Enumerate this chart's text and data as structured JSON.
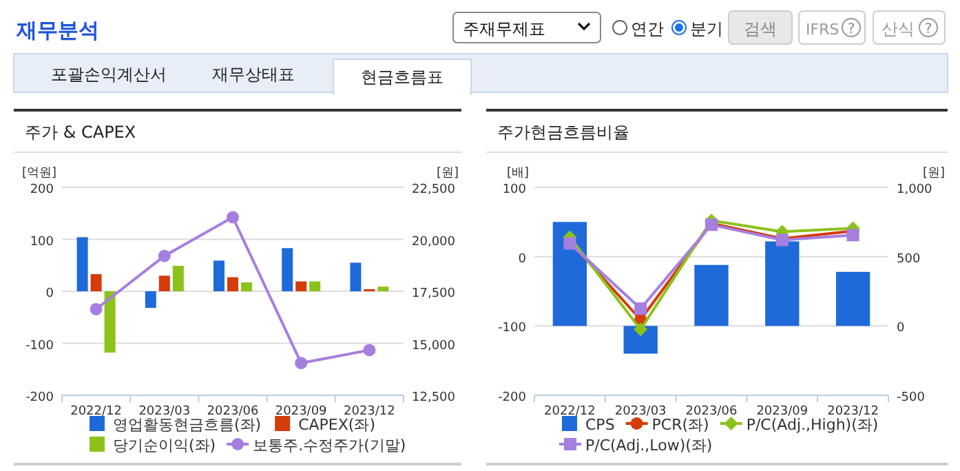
{
  "chart_data": [
    {
      "type": "other",
      "annotations": [
        "재무분석",
        "주재무제표",
        "연간",
        "분기",
        "검색",
        "IFRS",
        "?",
        "산식",
        "?",
        "포괄손익계산서",
        "재무상태표",
        "현금흐름표"
      ]
    },
    {
      "type": "bar",
      "title": "주가 & CAPEX",
      "ylabel": "[억원]",
      "y2label": "[원]",
      "categories": [
        "2022/12",
        "2023/03",
        "2023/06",
        "2023/09",
        "2023/12"
      ],
      "series": [
        {
          "name": "영업활동현금흐름(좌)",
          "color": "#1f6ad9",
          "values": [
            104,
            -32,
            59,
            83,
            55
          ]
        },
        {
          "name": "CAPEX(좌)",
          "color": "#d63b0a",
          "values": [
            33,
            30,
            27,
            19,
            4
          ]
        },
        {
          "name": "당기순이익(좌)",
          "color": "#8cc21a",
          "values": [
            -118,
            49,
            17,
            19,
            9
          ]
        },
        {
          "name": "보통주.수정주가(기말)",
          "type": "line",
          "axis": "y2",
          "marker": "circle",
          "color": "#a57fe0",
          "values": [
            16640,
            19200,
            21060,
            14050,
            14670
          ]
        }
      ],
      "ylim": [
        -200,
        200
      ],
      "yticks": [
        -200,
        -100,
        0,
        100,
        200
      ],
      "y2lim": [
        12500,
        22500
      ],
      "y2ticks": [
        {
          "value": 12500,
          "label": "12,500"
        },
        {
          "value": 15000,
          "label": "15,000"
        },
        {
          "value": 17500,
          "label": "17,500"
        },
        {
          "value": 20000,
          "label": "20,000"
        },
        {
          "value": 22500,
          "label": "22,500"
        }
      ],
      "grid": "y",
      "legend": "bottom",
      "line_style": "solid"
    },
    {
      "type": "bar",
      "title": "주가현금흐름비율",
      "ylabel": "[배]",
      "y2label": "[원]",
      "categories": [
        "2022/12",
        "2023/03",
        "2023/06",
        "2023/09",
        "2023/12"
      ],
      "series": [
        {
          "name": "CPS",
          "axis": "y2",
          "color": "#1f6ad9",
          "values": [
            750,
            -200,
            440,
            610,
            390
          ]
        },
        {
          "name": "PCR(좌)",
          "type": "line",
          "marker": "circle",
          "color": "#d63b0a",
          "values": [
            22,
            -91,
            48,
            26,
            37
          ]
        },
        {
          "name": "P/C(Adj.,High)(좌)",
          "type": "line",
          "marker": "diamond",
          "color": "#8cc21a",
          "values": [
            28,
            -105,
            52,
            36,
            41
          ]
        },
        {
          "name": "P/C(Adj.,Low)(좌)",
          "type": "line",
          "marker": "square",
          "color": "#a57fe0",
          "values": [
            19,
            -75,
            46,
            24,
            31
          ]
        }
      ],
      "ylim": [
        -200,
        100
      ],
      "yticks": [
        -200,
        -100,
        0,
        100
      ],
      "y2lim": [
        -500,
        1000
      ],
      "y2ticks": [
        -500,
        0,
        500,
        {
          "value": 1000,
          "label": "1,000"
        }
      ],
      "grid": "y",
      "legend": "bottom",
      "line_style": "solid"
    }
  ]
}
